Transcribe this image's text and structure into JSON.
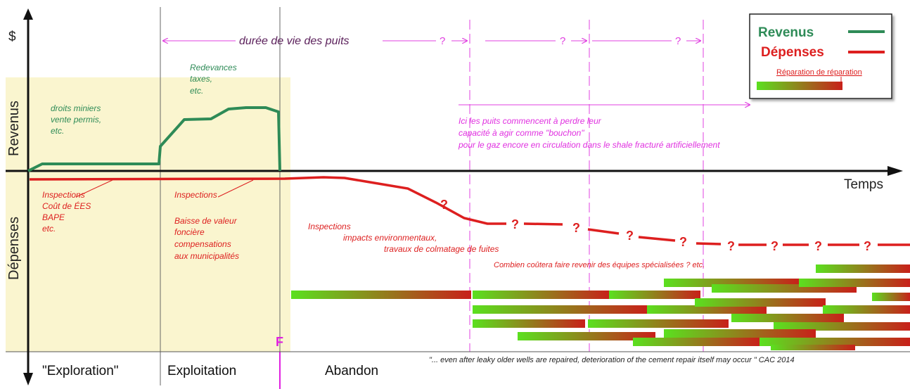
{
  "axes": {
    "y_top": "$",
    "y_upper": "Revenus",
    "y_lower": "Dépenses",
    "x_label": "Temps"
  },
  "lifetime": {
    "label": "durée de vie des puits",
    "q1": "?",
    "q2": "?",
    "q3": "?"
  },
  "legend": {
    "revenus": "Revenus",
    "depenses": "Dépenses",
    "reparation": "Réparation de réparation",
    "colors": {
      "revenus": "#2e8b57",
      "depenses": "#dd1f1f",
      "grad_start": "#5be01f",
      "grad_end": "#c8201a"
    }
  },
  "annotations": {
    "revenue_exploration": [
      "droits miniers",
      "vente permis,",
      "etc."
    ],
    "revenue_exploitation": [
      "Redevances",
      "taxes,",
      "etc."
    ],
    "wells_loss": [
      "Ici les puits commencent à perdre leur",
      "capacité à agir comme \"bouchon\"",
      "pour le gaz encore en circulation dans le shale fracturé artificiellement"
    ],
    "cost_exploration": [
      "Inspections",
      "Coût de ÉES",
      "BAPE",
      "etc."
    ],
    "cost_exploitation": [
      "Inspections",
      "",
      "Baisse de valeur",
      "foncière",
      "compensations",
      "aux municipalités"
    ],
    "cost_abandon": [
      "Inspections",
      "impacts environmentaux,",
      "travaux de colmatage de fuites"
    ],
    "teams": "Combien coûtera faire revenir des équipes spécialisées ?  etc.",
    "f_marker": "F",
    "quote": "\"... even after leaky older wells are repaired, deterioration of the cement repair itself may occur \"  CAC 2014",
    "cost_question": "?"
  },
  "phases": {
    "exploration": "\"Exploration\"",
    "exploitation": "Exploitation",
    "abandon": "Abandon"
  }
}
